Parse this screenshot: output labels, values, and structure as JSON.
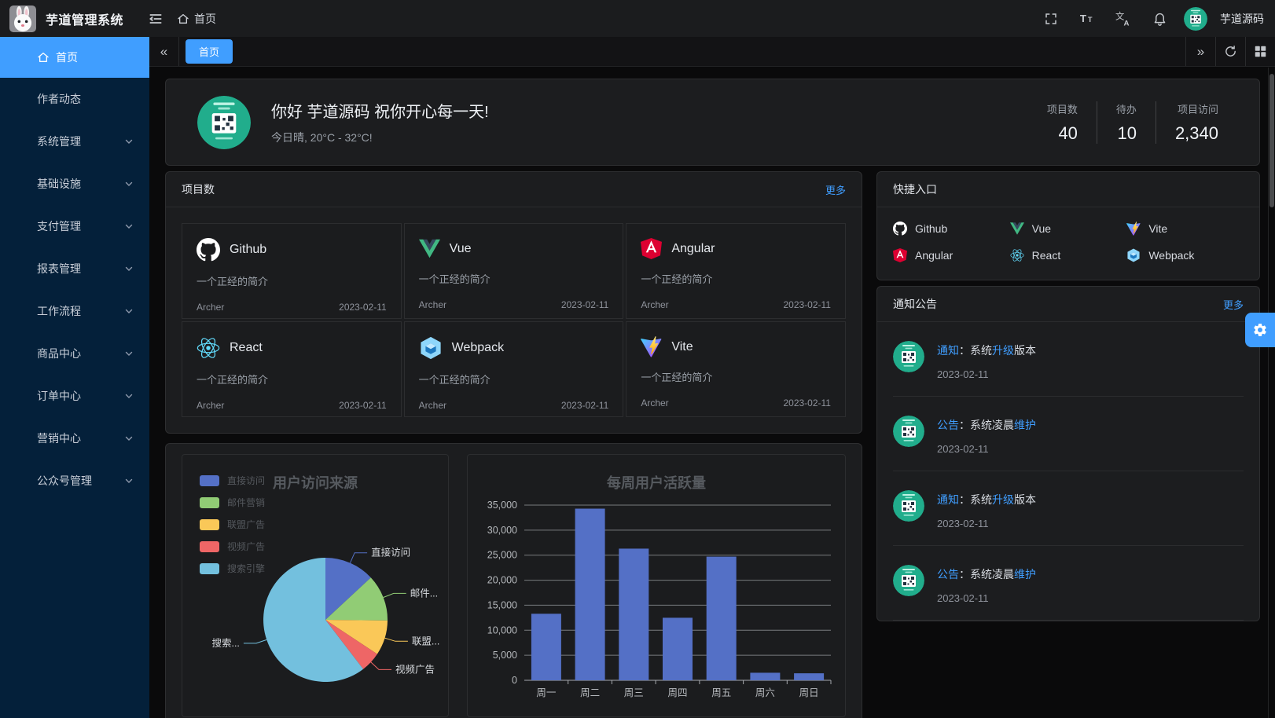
{
  "app": {
    "title": "芋道管理系统",
    "breadcrumb_home": "首页",
    "username": "芋道源码"
  },
  "tabbar": {
    "active_tab": "首页",
    "prev_glyph": "«",
    "next_glyph": "»"
  },
  "sidebar": {
    "items": [
      {
        "key": "home",
        "label": "首页",
        "active": true,
        "expandable": false
      },
      {
        "key": "author-news",
        "label": "作者动态",
        "active": false,
        "expandable": false
      },
      {
        "key": "system",
        "label": "系统管理",
        "active": false,
        "expandable": true
      },
      {
        "key": "infrastructure",
        "label": "基础设施",
        "active": false,
        "expandable": true
      },
      {
        "key": "payment",
        "label": "支付管理",
        "active": false,
        "expandable": true
      },
      {
        "key": "report",
        "label": "报表管理",
        "active": false,
        "expandable": true
      },
      {
        "key": "workflow",
        "label": "工作流程",
        "active": false,
        "expandable": true
      },
      {
        "key": "product",
        "label": "商品中心",
        "active": false,
        "expandable": true
      },
      {
        "key": "order",
        "label": "订单中心",
        "active": false,
        "expandable": true
      },
      {
        "key": "marketing",
        "label": "营销中心",
        "active": false,
        "expandable": true
      },
      {
        "key": "mp",
        "label": "公众号管理",
        "active": false,
        "expandable": true
      }
    ]
  },
  "welcome": {
    "greeting": "你好 芋道源码 祝你开心每一天!",
    "weather": "今日晴, 20°C - 32°C!",
    "stats": [
      {
        "key": "projects",
        "label": "项目数",
        "value": "40"
      },
      {
        "key": "todo",
        "label": "待办",
        "value": "10"
      },
      {
        "key": "visits",
        "label": "项目访问",
        "value": "2,340"
      }
    ]
  },
  "projects": {
    "title": "项目数",
    "more": "更多",
    "items": [
      {
        "key": "github",
        "name": "Github",
        "desc": "一个正经的简介",
        "author": "Archer",
        "date": "2023-02-11"
      },
      {
        "key": "vue",
        "name": "Vue",
        "desc": "一个正经的简介",
        "author": "Archer",
        "date": "2023-02-11"
      },
      {
        "key": "angular",
        "name": "Angular",
        "desc": "一个正经的简介",
        "author": "Archer",
        "date": "2023-02-11"
      },
      {
        "key": "react",
        "name": "React",
        "desc": "一个正经的简介",
        "author": "Archer",
        "date": "2023-02-11"
      },
      {
        "key": "webpack",
        "name": "Webpack",
        "desc": "一个正经的简介",
        "author": "Archer",
        "date": "2023-02-11"
      },
      {
        "key": "vite",
        "name": "Vite",
        "desc": "一个正经的简介",
        "author": "Archer",
        "date": "2023-02-11"
      }
    ]
  },
  "shortcuts": {
    "title": "快捷入口",
    "items": [
      {
        "key": "github",
        "label": "Github"
      },
      {
        "key": "vue",
        "label": "Vue"
      },
      {
        "key": "vite",
        "label": "Vite"
      },
      {
        "key": "angular",
        "label": "Angular"
      },
      {
        "key": "react",
        "label": "React"
      },
      {
        "key": "webpack",
        "label": "Webpack"
      }
    ]
  },
  "notices": {
    "title": "通知公告",
    "more": "更多",
    "items": [
      {
        "segments": [
          {
            "text": "通知",
            "hl": true
          },
          {
            "text": "：系统",
            "hl": false
          },
          {
            "text": "升级",
            "hl": true
          },
          {
            "text": "版本",
            "hl": false
          }
        ],
        "date": "2023-02-11"
      },
      {
        "segments": [
          {
            "text": "公告",
            "hl": true
          },
          {
            "text": "：系统凌晨",
            "hl": false
          },
          {
            "text": "维护",
            "hl": true
          }
        ],
        "date": "2023-02-11"
      },
      {
        "segments": [
          {
            "text": "通知",
            "hl": true
          },
          {
            "text": "：系统",
            "hl": false
          },
          {
            "text": "升级",
            "hl": true
          },
          {
            "text": "版本",
            "hl": false
          }
        ],
        "date": "2023-02-11"
      },
      {
        "segments": [
          {
            "text": "公告",
            "hl": true
          },
          {
            "text": "：系统凌晨",
            "hl": false
          },
          {
            "text": "维护",
            "hl": true
          }
        ],
        "date": "2023-02-11"
      }
    ]
  },
  "chart_data": [
    {
      "type": "pie",
      "title": "用户访问来源",
      "legend_position": "left",
      "legend": [
        "直接访问",
        "邮件营销",
        "联盟广告",
        "视频广告",
        "搜索引擎"
      ],
      "series": [
        {
          "name": "直接访问",
          "value": 335,
          "label": "直接访问"
        },
        {
          "name": "邮件营销",
          "value": 310,
          "label": "邮件..."
        },
        {
          "name": "联盟广告",
          "value": 234,
          "label": "联盟..."
        },
        {
          "name": "视频广告",
          "value": 135,
          "label": "视频广告"
        },
        {
          "name": "搜索引擎",
          "value": 1548,
          "label": "搜索..."
        }
      ],
      "palette": [
        "#5470c6",
        "#91cc75",
        "#fac858",
        "#ee6666",
        "#73c0de"
      ]
    },
    {
      "type": "bar",
      "title": "每周用户活跃量",
      "categories": [
        "周一",
        "周二",
        "周三",
        "周四",
        "周五",
        "周六",
        "周日"
      ],
      "values": [
        13300,
        34300,
        26300,
        12500,
        24700,
        1500,
        1400
      ],
      "ylim": [
        0,
        35000
      ],
      "ytick_step": 5000,
      "bar_color": "#5470c6",
      "grid": true
    }
  ],
  "colors": {
    "primary": "#409eff",
    "sidebar_bg": "#04203a",
    "panel_bg": "#1c1d1f",
    "page_bg": "#0a0a0b"
  }
}
